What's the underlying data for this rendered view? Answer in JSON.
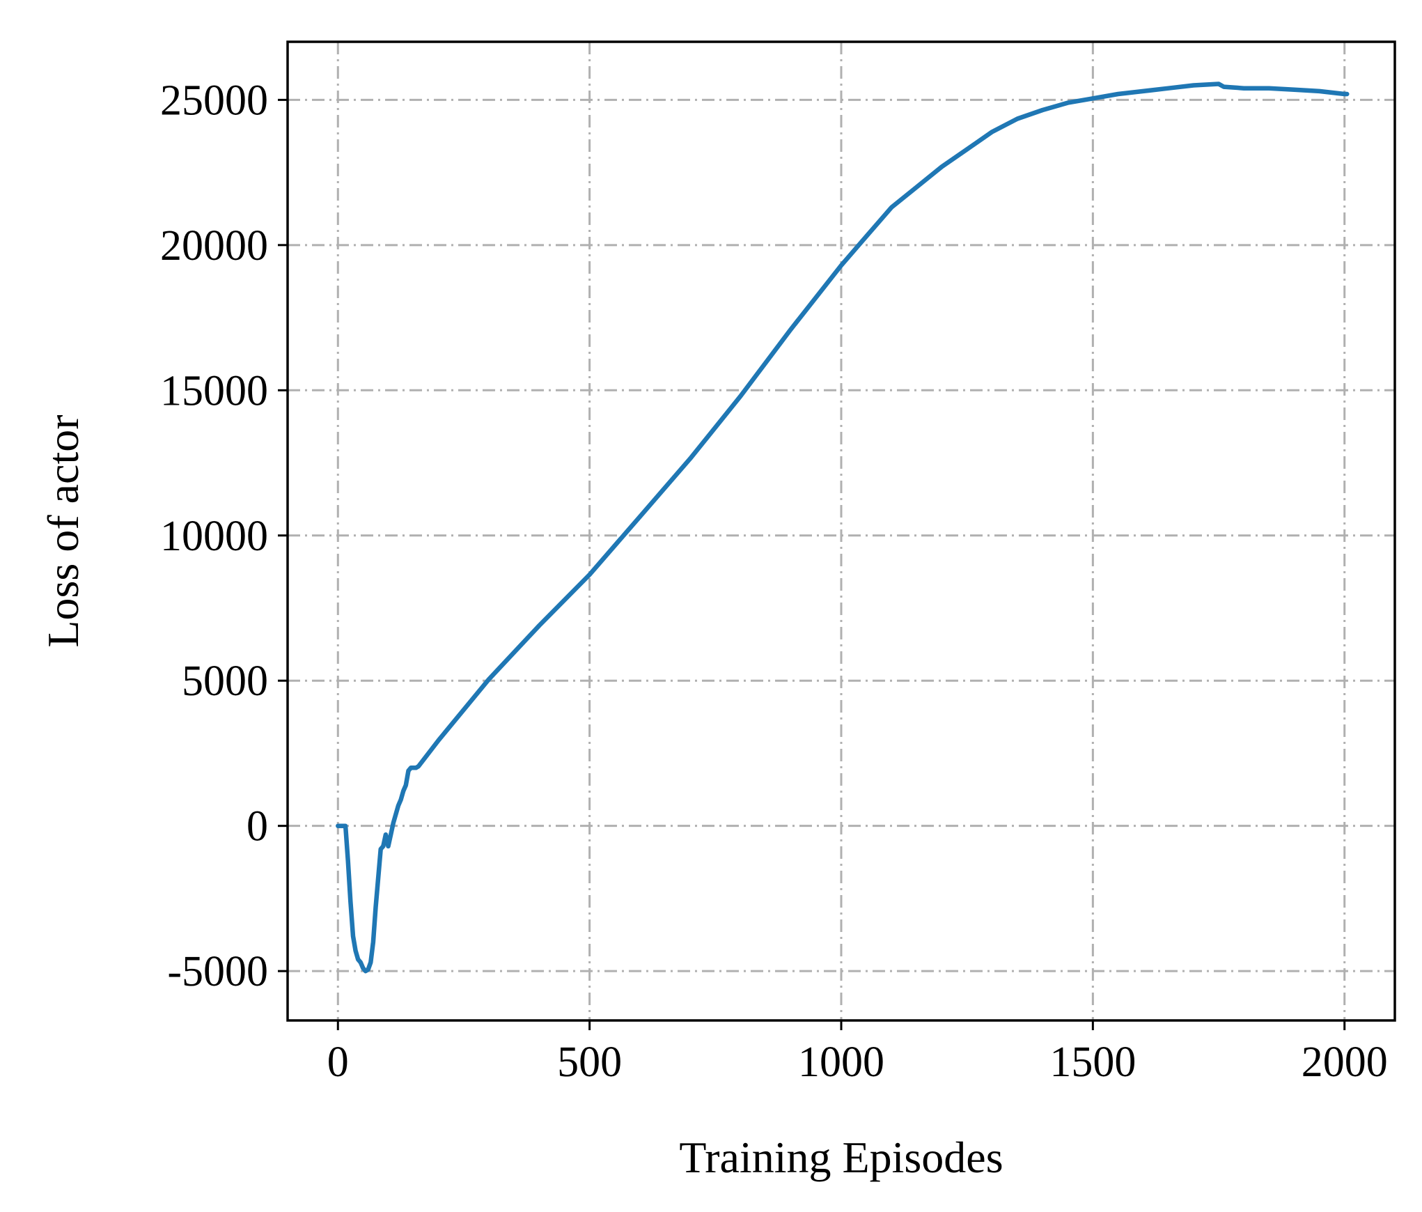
{
  "chart_data": {
    "type": "line",
    "xlabel": "Training Episodes",
    "ylabel": "Loss of actor",
    "xlim": [
      -100,
      2100
    ],
    "ylim": [
      -6700,
      27000
    ],
    "xticks": [
      0,
      500,
      1000,
      1500,
      2000
    ],
    "xtick_labels": [
      "0",
      "500",
      "1000",
      "1500",
      "2000"
    ],
    "yticks": [
      -5000,
      0,
      5000,
      10000,
      15000,
      20000,
      25000
    ],
    "ytick_labels": [
      "-5000",
      "0",
      "5000",
      "10000",
      "15000",
      "20000",
      "25000"
    ],
    "grid": true,
    "grid_style": "dash-dot",
    "series": [
      {
        "color": "#1f77b4",
        "x": [
          0,
          15,
          20,
          25,
          30,
          35,
          40,
          45,
          50,
          55,
          60,
          65,
          70,
          75,
          80,
          85,
          90,
          95,
          100,
          105,
          110,
          115,
          120,
          125,
          130,
          135,
          140,
          145,
          150,
          155,
          160,
          200,
          300,
          400,
          500,
          600,
          700,
          800,
          900,
          1000,
          1050,
          1100,
          1150,
          1200,
          1250,
          1300,
          1350,
          1400,
          1450,
          1500,
          1550,
          1600,
          1650,
          1700,
          1750,
          1760,
          1800,
          1850,
          1900,
          1950,
          2000,
          2005
        ],
        "y": [
          0,
          0,
          -1200,
          -2600,
          -3800,
          -4300,
          -4600,
          -4700,
          -4900,
          -5000,
          -4950,
          -4700,
          -4000,
          -2800,
          -1800,
          -800,
          -700,
          -300,
          -700,
          -300,
          100,
          400,
          700,
          900,
          1200,
          1400,
          1900,
          2000,
          2000,
          2000,
          2050,
          2950,
          5050,
          6900,
          8650,
          10650,
          12650,
          14800,
          17100,
          19300,
          20300,
          21300,
          22000,
          22700,
          23300,
          23900,
          24350,
          24650,
          24900,
          25050,
          25200,
          25300,
          25400,
          25500,
          25550,
          25450,
          25400,
          25400,
          25350,
          25300,
          25200,
          25200
        ]
      }
    ]
  }
}
